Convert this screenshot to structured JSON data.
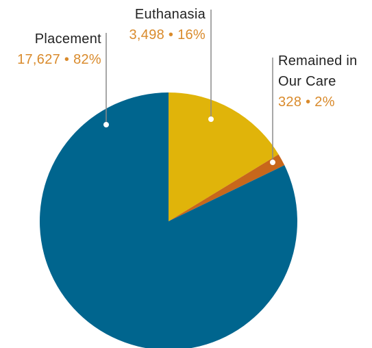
{
  "chart_data": {
    "type": "pie",
    "categories": [
      "Euthanasia",
      "Remained in Our Care",
      "Placement"
    ],
    "values": [
      3498,
      328,
      17627
    ],
    "value_labels": [
      "3,498 • 16%",
      "328 • 2%",
      "17,627 • 82%"
    ],
    "colors": [
      "#e0b40a",
      "#c8671b",
      "#00658e"
    ]
  }
}
